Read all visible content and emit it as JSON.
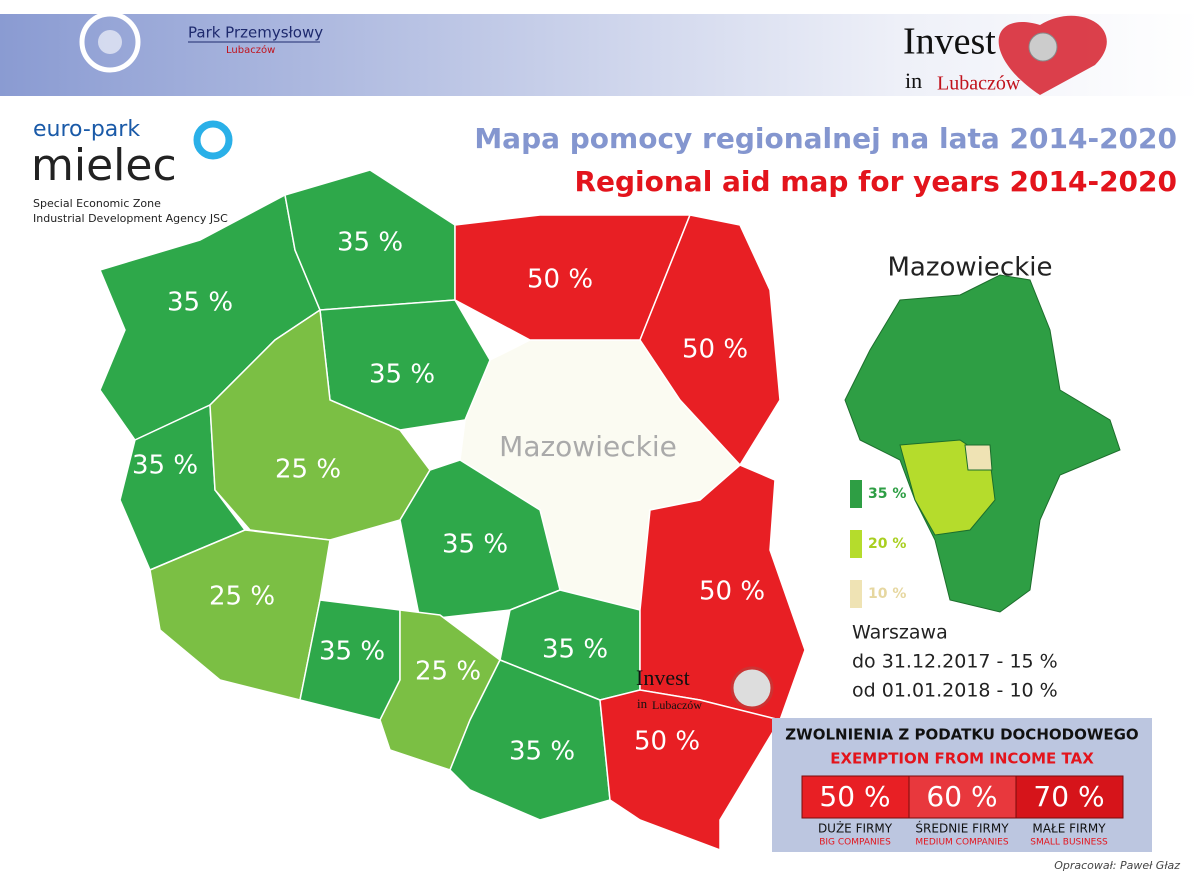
{
  "header": {
    "park_name": "Park Przemysłowy",
    "park_town": "Lubaczów",
    "invest_brand": "Invest",
    "invest_in": "in",
    "invest_town": "Lubaczów"
  },
  "logo": {
    "brand": "euro-park",
    "name": "mielec",
    "line1": "Special Economic Zone",
    "line2": "Industrial Development Agency JSC"
  },
  "title": {
    "pl": "Mapa pomocy regionalnej na lata 2014-2020",
    "en": "Regional aid map for years 2014-2020"
  },
  "map": {
    "center_label": "Mazowieckie",
    "regions": [
      {
        "label": "35 %"
      },
      {
        "label": "35 %"
      },
      {
        "label": "50 %"
      },
      {
        "label": "50 %"
      },
      {
        "label": "35 %"
      },
      {
        "label": "35 %"
      },
      {
        "label": "25 %"
      },
      {
        "label": "35 %"
      },
      {
        "label": "25 %"
      },
      {
        "label": "35 %"
      },
      {
        "label": "25 %"
      },
      {
        "label": "35 %"
      },
      {
        "label": "50 %"
      },
      {
        "label": "35 %"
      },
      {
        "label": "50 %"
      }
    ]
  },
  "inset": {
    "title": "Mazowieckie",
    "legend": [
      "35 %",
      "20 %",
      "10 %"
    ],
    "city": "Warszawa",
    "note1": "do 31.12.2017 - 15 %",
    "note2": "od 01.01.2018 - 10 %"
  },
  "tax": {
    "title_pl": "ZWOLNIENIA Z PODATKU DOCHODOWEGO",
    "title_en": "EXEMPTION FROM INCOME TAX",
    "rates": [
      {
        "value": "50 %",
        "pl": "DUŻE FIRMY",
        "en": "BIG COMPANIES"
      },
      {
        "value": "60 %",
        "pl": "ŚREDNIE FIRMY",
        "en": "MEDIUM COMPANIES"
      },
      {
        "value": "70 %",
        "pl": "MAŁE FIRMY",
        "en": "SMALL BUSINESS"
      }
    ]
  },
  "credit": "Opracował: Paweł Głaz"
}
